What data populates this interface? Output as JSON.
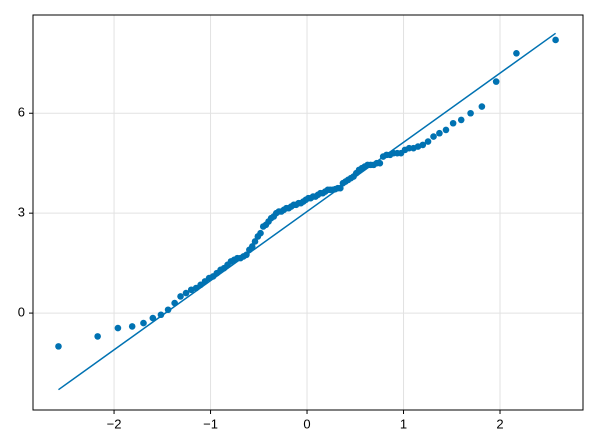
{
  "chart_data": {
    "type": "scatter",
    "xlim": [
      -2.84,
      2.86
    ],
    "ylim": [
      -2.91,
      8.95
    ],
    "xticks": [
      {
        "value": -2,
        "label": "−2"
      },
      {
        "value": -1,
        "label": "−1"
      },
      0,
      1,
      2
    ],
    "yticks": [
      0,
      3,
      6
    ],
    "grid": true,
    "series": [
      {
        "color": "#0072b2",
        "x": [
          -2.576,
          -2.17,
          -1.96,
          -1.812,
          -1.695,
          -1.598,
          -1.514,
          -1.44,
          -1.372,
          -1.311,
          -1.254,
          -1.2,
          -1.15,
          -1.103,
          -1.058,
          -1.015,
          -0.974,
          -0.935,
          -0.896,
          -0.86,
          -0.824,
          -0.789,
          -0.755,
          -0.722,
          -0.69,
          -0.659,
          -0.628,
          -0.598,
          -0.568,
          -0.539,
          -0.51,
          -0.482,
          -0.454,
          -0.426,
          -0.399,
          -0.372,
          -0.345,
          -0.319,
          -0.292,
          -0.266,
          -0.24,
          -0.215,
          -0.189,
          -0.164,
          -0.138,
          -0.113,
          -0.088,
          -0.063,
          -0.038,
          -0.013,
          0.013,
          0.038,
          0.063,
          0.088,
          0.113,
          0.138,
          0.164,
          0.189,
          0.215,
          0.24,
          0.266,
          0.292,
          0.319,
          0.345,
          0.372,
          0.399,
          0.426,
          0.454,
          0.482,
          0.51,
          0.539,
          0.568,
          0.598,
          0.628,
          0.659,
          0.69,
          0.722,
          0.755,
          0.789,
          0.824,
          0.86,
          0.896,
          0.935,
          0.974,
          1.015,
          1.058,
          1.103,
          1.15,
          1.2,
          1.254,
          1.311,
          1.372,
          1.44,
          1.514,
          1.598,
          1.695,
          1.812,
          1.96,
          2.17,
          2.576
        ],
        "values": [
          -1.0,
          -0.7,
          -0.45,
          -0.4,
          -0.3,
          -0.15,
          -0.05,
          0.1,
          0.3,
          0.5,
          0.6,
          0.7,
          0.75,
          0.85,
          0.95,
          1.05,
          1.1,
          1.2,
          1.3,
          1.35,
          1.45,
          1.55,
          1.6,
          1.65,
          1.65,
          1.7,
          1.75,
          1.9,
          2.0,
          2.15,
          2.3,
          2.4,
          2.6,
          2.65,
          2.75,
          2.85,
          2.9,
          3.0,
          3.05,
          3.05,
          3.1,
          3.15,
          3.15,
          3.2,
          3.25,
          3.25,
          3.3,
          3.3,
          3.35,
          3.4,
          3.45,
          3.45,
          3.5,
          3.5,
          3.55,
          3.6,
          3.6,
          3.65,
          3.7,
          3.7,
          3.7,
          3.72,
          3.75,
          3.75,
          3.9,
          3.95,
          4.0,
          4.05,
          4.1,
          4.2,
          4.3,
          4.35,
          4.4,
          4.45,
          4.45,
          4.45,
          4.5,
          4.5,
          4.7,
          4.75,
          4.75,
          4.8,
          4.8,
          4.8,
          4.9,
          4.95,
          4.95,
          5.0,
          5.05,
          5.15,
          5.3,
          5.4,
          5.5,
          5.7,
          5.8,
          6.0,
          6.2,
          6.95,
          7.8,
          8.2
        ]
      }
    ],
    "reference_line": {
      "color": "#0072b2",
      "x": [
        -2.576,
        2.576
      ],
      "values": [
        -2.3,
        8.4
      ]
    }
  }
}
